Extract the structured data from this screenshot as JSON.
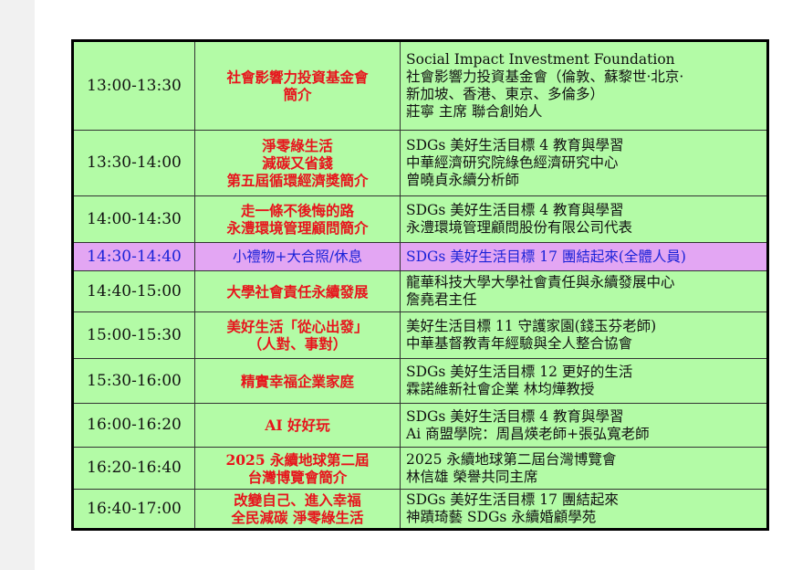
{
  "colors": {
    "row": "#b3fba6",
    "break_row": "#e3a6f3",
    "topic_text": "#e8141c",
    "break_text": "#1a22d8"
  },
  "rows": [
    {
      "time": "13:00-13:30",
      "topic": [
        "社會影響力投資基金會",
        "簡介"
      ],
      "detail": [
        "Social Impact Investment Foundation",
        "社會影響力投資基金會（倫敦、蘇黎世·北京·",
        "新加坡、香港、東京、多倫多）",
        "莊寧 主席 聯合創始人"
      ],
      "h": 98
    },
    {
      "time": "13:30-14:00",
      "topic": [
        "淨零綠生活",
        "減碳又省錢",
        "第五屆循環經濟獎簡介"
      ],
      "detail": [
        "SDGs 美好生活目標 4 教育與學習",
        "中華經濟研究院綠色經濟研究中心",
        "曾曉貞永續分析師"
      ],
      "h": 72
    },
    {
      "time": "14:00-14:30",
      "topic": [
        "走一條不後悔的路",
        "永澧環境管理顧問簡介"
      ],
      "detail": [
        "SDGs 美好生活目標 4 教育與學習",
        "永澧環境管理顧問股份有限公司代表"
      ],
      "h": 51
    },
    {
      "time": "14:30-14:40",
      "topic": [
        "小禮物+大合照/休息"
      ],
      "detail": [
        "SDGs 美好生活目標 17 團結起來(全體人員)"
      ],
      "h": 31,
      "break": true
    },
    {
      "time": "14:40-15:00",
      "topic": [
        "大學社會責任永續發展"
      ],
      "detail": [
        "龍華科技大學大學社會責任與永續發展中心",
        "詹堯君主任"
      ],
      "h": 45
    },
    {
      "time": "15:00-15:30",
      "topic": [
        "美好生活「從心出發」",
        "（人對、事對）"
      ],
      "detail": [
        "美好生活目標 11 守護家園(錢玉芬老師)",
        "中華基督教青年經驗與全人整合協會"
      ],
      "h": 51
    },
    {
      "time": "15:30-16:00",
      "topic": [
        "精實幸福企業家庭"
      ],
      "detail": [
        "SDGs 美好生活目標 12 更好的生活",
        "霖諾維新社會企業 林均燁教授"
      ],
      "h": 49
    },
    {
      "time": "16:00-16:20",
      "topic": [
        "AI 好好玩"
      ],
      "detail": [
        "SDGs 美好生活目標 4 教育與學習",
        "Ai 商盟學院：周昌煐老師+張弘寬老師"
      ],
      "h": 48
    },
    {
      "time": "16:20-16:40",
      "topic": [
        "2025 永續地球第二屆",
        "台灣博覽會簡介"
      ],
      "detail": [
        "2025 永續地球第二屆台灣博覽會",
        "林信雄 榮譽共同主席"
      ],
      "h": 46
    },
    {
      "time": "16:40-17:00",
      "topic": [
        "改變自己、進入幸福",
        "全民減碳 淨零綠生活"
      ],
      "detail": [
        "SDGs 美好生活目標 17 團結起來",
        "神蹟琦藝 SDGs 永續婚顧學苑"
      ],
      "h": 44
    }
  ]
}
